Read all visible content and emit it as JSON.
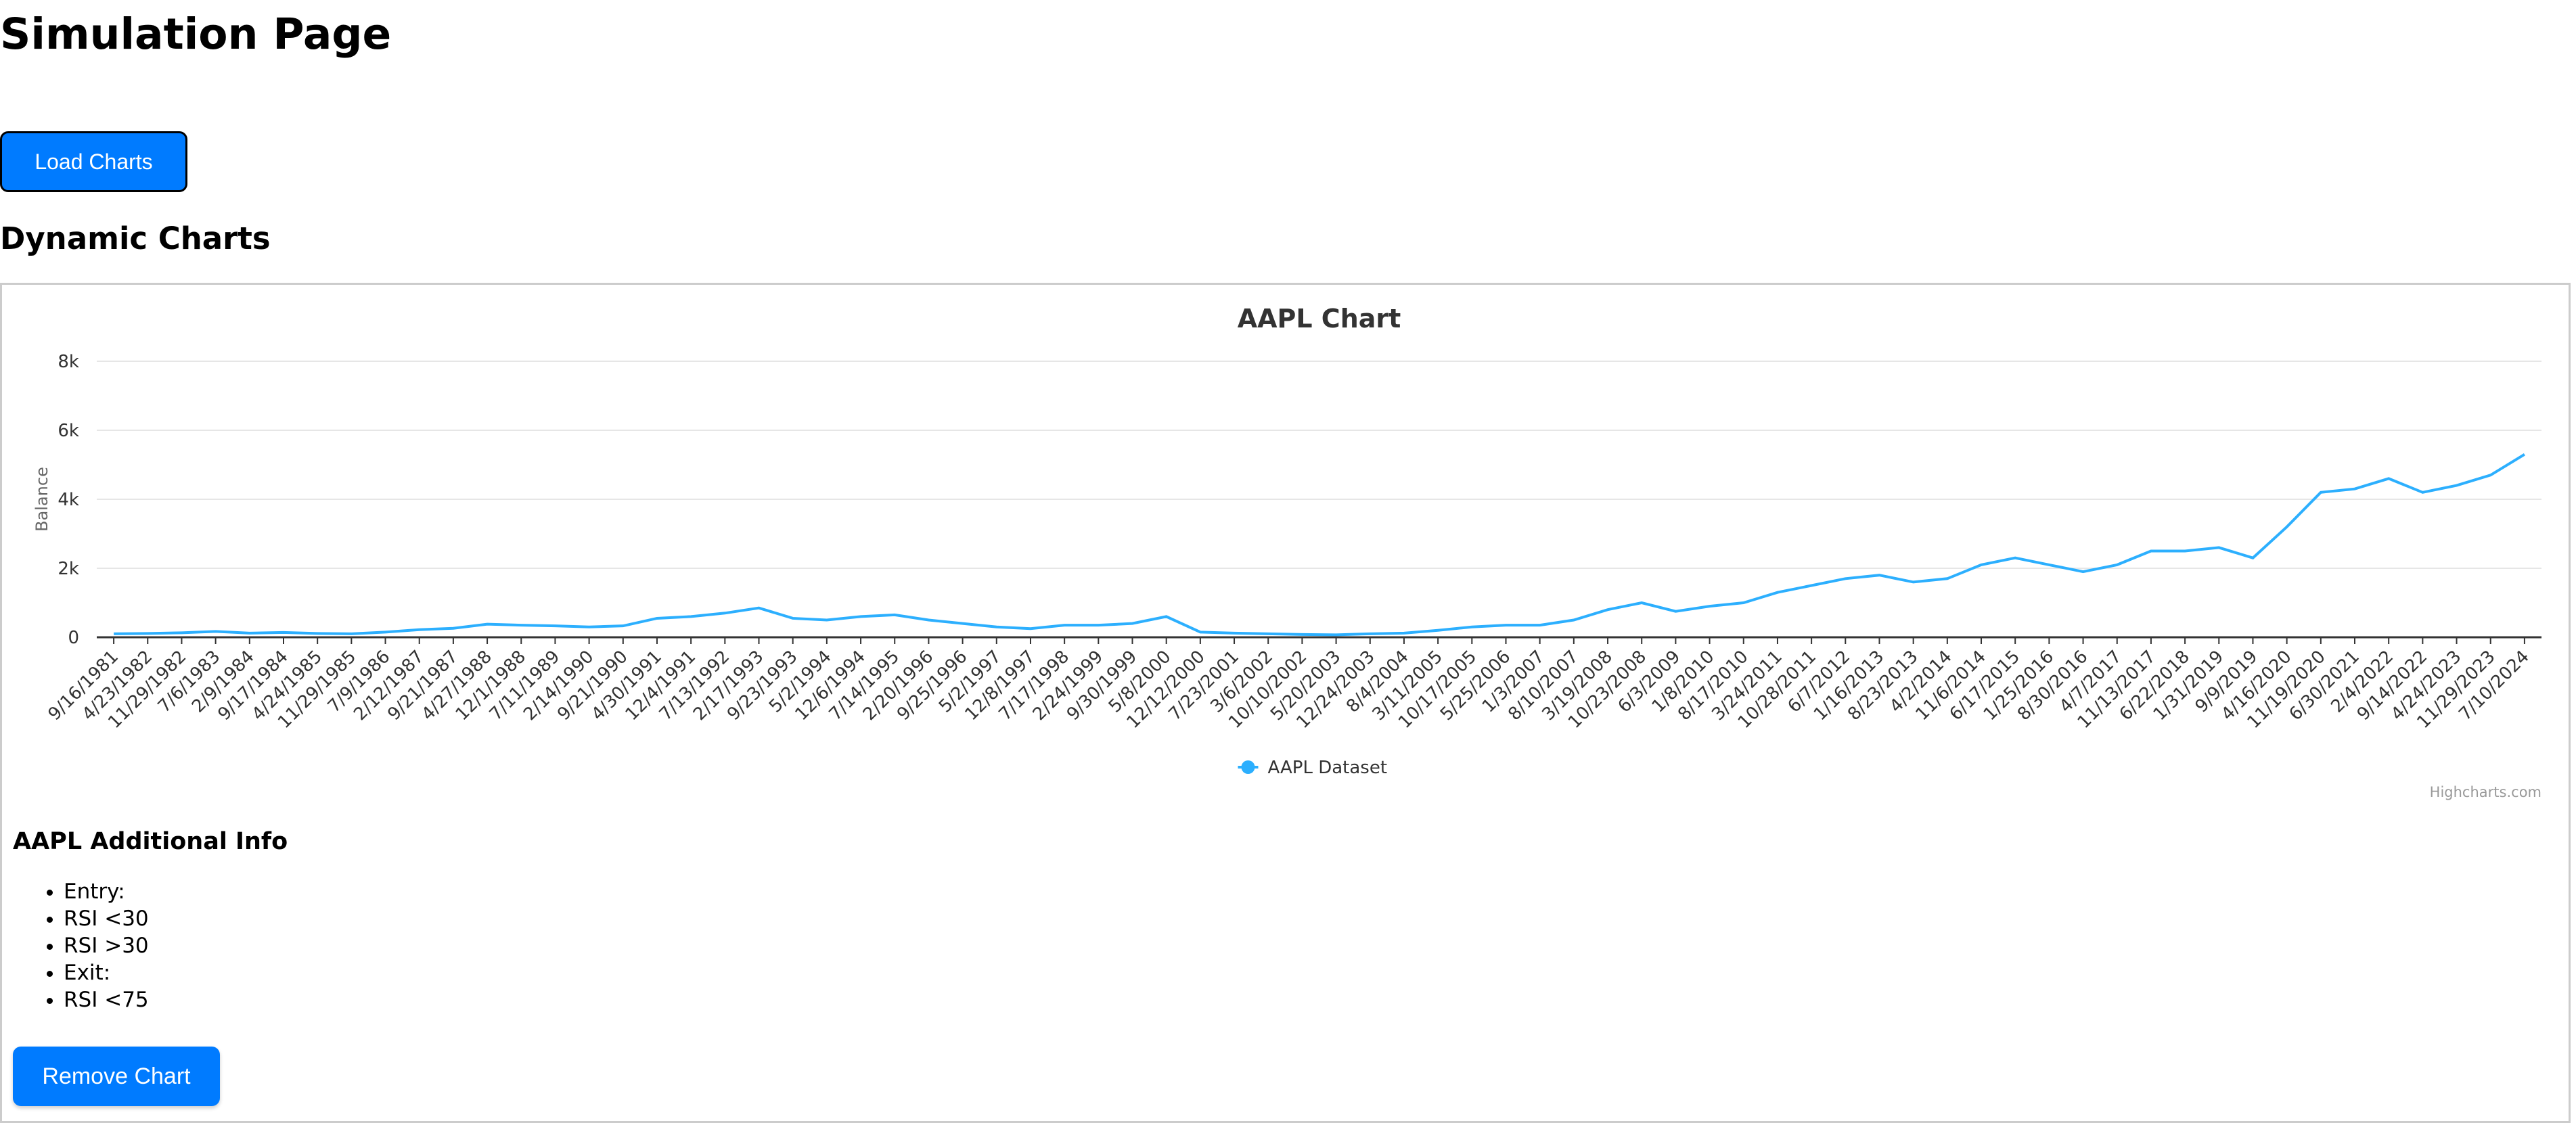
{
  "header": {
    "title": "Simulation Page"
  },
  "load_button": "Load Charts",
  "section_title": "Dynamic Charts",
  "chart_data": {
    "type": "line",
    "title": "AAPL Chart",
    "y_label": "Balance",
    "categories": [
      "9/16/1981",
      "4/23/1982",
      "11/29/1982",
      "7/6/1983",
      "2/9/1984",
      "9/17/1984",
      "4/24/1985",
      "11/29/1985",
      "7/9/1986",
      "2/12/1987",
      "9/21/1987",
      "4/27/1988",
      "12/1/1988",
      "7/11/1989",
      "2/14/1990",
      "9/21/1990",
      "4/30/1991",
      "12/4/1991",
      "7/13/1992",
      "2/17/1993",
      "9/23/1993",
      "5/2/1994",
      "12/6/1994",
      "7/14/1995",
      "2/20/1996",
      "9/25/1996",
      "5/2/1997",
      "12/8/1997",
      "7/17/1998",
      "2/24/1999",
      "9/30/1999",
      "5/8/2000",
      "12/12/2000",
      "7/23/2001",
      "3/6/2002",
      "10/10/2002",
      "5/20/2003",
      "12/24/2003",
      "8/4/2004",
      "3/11/2005",
      "10/17/2005",
      "5/25/2006",
      "1/3/2007",
      "8/10/2007",
      "3/19/2008",
      "10/23/2008",
      "6/3/2009",
      "1/8/2010",
      "8/17/2010",
      "3/24/2011",
      "10/28/2011",
      "6/7/2012",
      "1/16/2013",
      "8/23/2013",
      "4/2/2014",
      "11/6/2014",
      "6/17/2015",
      "1/25/2016",
      "8/30/2016",
      "4/7/2017",
      "11/13/2017",
      "6/22/2018",
      "1/31/2019",
      "9/9/2019",
      "4/16/2020",
      "11/19/2020",
      "6/30/2021",
      "2/4/2022",
      "9/14/2022",
      "4/24/2023",
      "11/29/2023",
      "7/10/2024"
    ],
    "series": [
      {
        "name": "AAPL Dataset",
        "color": "#2caffe",
        "values": [
          100,
          110,
          130,
          170,
          120,
          140,
          110,
          100,
          150,
          220,
          260,
          380,
          350,
          330,
          300,
          330,
          550,
          600,
          700,
          850,
          550,
          500,
          600,
          650,
          500,
          400,
          300,
          250,
          350,
          350,
          400,
          600,
          150,
          120,
          100,
          80,
          70,
          100,
          120,
          200,
          300,
          350,
          350,
          500,
          800,
          1000,
          750,
          900,
          1000,
          1300,
          1500,
          1700,
          1800,
          1600,
          1700,
          2100,
          2300,
          2100,
          1900,
          2100,
          2500,
          2500,
          2600,
          2300,
          3200,
          4200,
          4300,
          4600,
          4200,
          4400,
          4700,
          5300
        ]
      }
    ],
    "ylim": [
      0,
      8000
    ],
    "yticks": [
      0,
      {
        "value": 2000,
        "label": "2k"
      },
      {
        "value": 4000,
        "label": "4k"
      },
      {
        "value": 6000,
        "label": "6k"
      },
      {
        "value": 8000,
        "label": "8k"
      }
    ],
    "grid": true,
    "legend": "bottom",
    "credits": "Highcharts.com"
  },
  "info": {
    "title": "AAPL Additional Info",
    "items": [
      "Entry:",
      "RSI <30",
      "RSI >30",
      "Exit:",
      "RSI <75"
    ]
  },
  "remove_button": "Remove Chart"
}
